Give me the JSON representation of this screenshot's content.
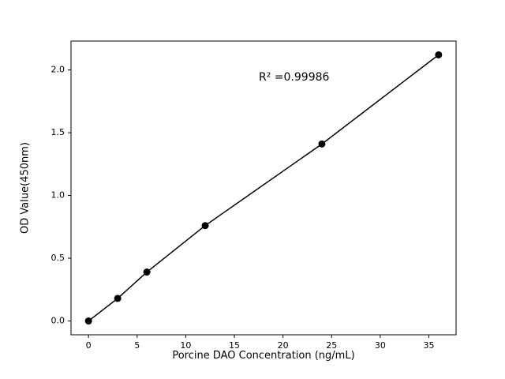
{
  "chart_data": {
    "type": "scatter",
    "x": [
      0,
      3,
      6,
      12,
      24,
      36
    ],
    "y": [
      0.0,
      0.18,
      0.39,
      0.76,
      1.41,
      2.12
    ],
    "fit_line": true,
    "annotation": "R² =0.99986",
    "title": "",
    "xlabel": "Porcine DAO Concentration (ng/mL)",
    "ylabel": "OD Value(450nm)",
    "xlim": [
      -1.8,
      37.8
    ],
    "ylim": [
      -0.11,
      2.23
    ],
    "xticks": [
      0,
      5,
      10,
      15,
      20,
      25,
      30,
      35
    ],
    "xticklabels": [
      "0",
      "5",
      "10",
      "15",
      "20",
      "25",
      "30",
      "35"
    ],
    "yticks": [
      0.0,
      0.5,
      1.0,
      1.5,
      2.0
    ],
    "yticklabels": [
      "0.0",
      "0.5",
      "1.0",
      "1.5",
      "2.0"
    ],
    "grid": false,
    "legend": null,
    "line_color": "#000000",
    "marker_color": "#000000",
    "background_color": "#ffffff"
  }
}
